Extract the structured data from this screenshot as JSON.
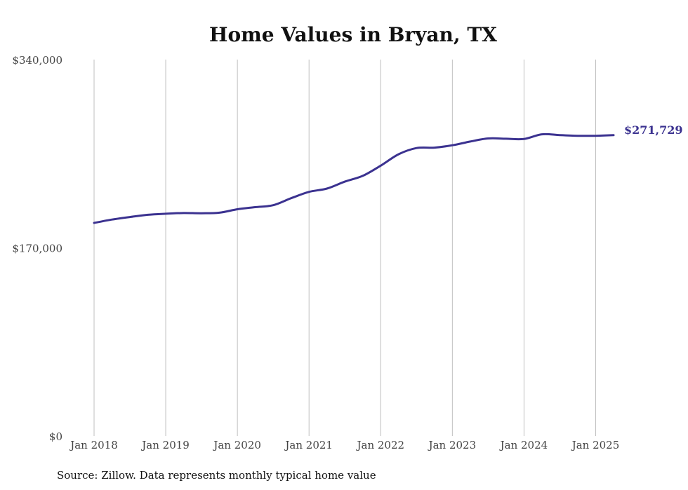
{
  "chart_data": {
    "type": "line",
    "title": "Home Values in Bryan, TX",
    "source": "Source: Zillow. Data represents monthly typical home value",
    "ylim": [
      0,
      340000
    ],
    "yticks": [
      {
        "value": 0,
        "label": "$0"
      },
      {
        "value": 170000,
        "label": "$170,000"
      },
      {
        "value": 340000,
        "label": "$340,000"
      }
    ],
    "xlim": [
      "2018-01",
      "2025-04"
    ],
    "xticks": [
      {
        "value": "2018-01",
        "label": "Jan 2018"
      },
      {
        "value": "2019-01",
        "label": "Jan 2019"
      },
      {
        "value": "2020-01",
        "label": "Jan 2020"
      },
      {
        "value": "2021-01",
        "label": "Jan 2021"
      },
      {
        "value": "2022-01",
        "label": "Jan 2022"
      },
      {
        "value": "2023-01",
        "label": "Jan 2023"
      },
      {
        "value": "2024-01",
        "label": "Jan 2024"
      },
      {
        "value": "2025-01",
        "label": "Jan 2025"
      }
    ],
    "grid": {
      "vertical": true,
      "horizontal": false
    },
    "line_color": "#3b3290",
    "end_label": "$271,729",
    "series": [
      {
        "points": [
          [
            "2018-01",
            192500
          ],
          [
            "2018-04",
            195500
          ],
          [
            "2018-07",
            197800
          ],
          [
            "2018-10",
            199800
          ],
          [
            "2019-01",
            200800
          ],
          [
            "2019-04",
            201400
          ],
          [
            "2019-07",
            201200
          ],
          [
            "2019-10",
            201700
          ],
          [
            "2020-01",
            204800
          ],
          [
            "2020-04",
            206700
          ],
          [
            "2020-07",
            208500
          ],
          [
            "2020-10",
            214800
          ],
          [
            "2021-01",
            220500
          ],
          [
            "2021-04",
            223500
          ],
          [
            "2021-07",
            229800
          ],
          [
            "2021-10",
            235000
          ],
          [
            "2022-01",
            244200
          ],
          [
            "2022-04",
            254500
          ],
          [
            "2022-07",
            260100
          ],
          [
            "2022-10",
            260500
          ],
          [
            "2023-01",
            262600
          ],
          [
            "2023-04",
            266000
          ],
          [
            "2023-07",
            268800
          ],
          [
            "2023-10",
            268500
          ],
          [
            "2024-01",
            268300
          ],
          [
            "2024-04",
            272500
          ],
          [
            "2024-07",
            271800
          ],
          [
            "2024-10",
            271200
          ],
          [
            "2025-01",
            271200
          ],
          [
            "2025-04",
            271729
          ]
        ]
      }
    ]
  }
}
